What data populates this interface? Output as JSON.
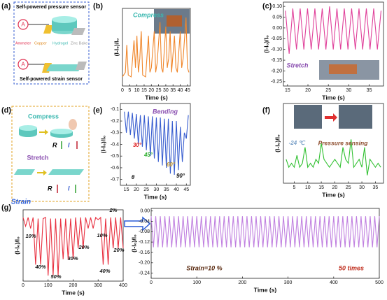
{
  "panel_labels": [
    "(a)",
    "(b)",
    "(c)",
    "(d)",
    "(e)",
    "(f)",
    "(g)"
  ],
  "diagram_a": {
    "top_title": "Self-powered pressure sensor",
    "bottom_title": "Self-powered strain sensor",
    "ammeter_symbol": "A",
    "labels": [
      "Ammeter",
      "Copper",
      "Hydrogel",
      "Zinc Bake"
    ]
  },
  "diagram_d": {
    "compress": "Compress",
    "stretch": "Stretch",
    "resistance": "R",
    "current": "I"
  },
  "chart_data": [
    {
      "type": "line",
      "xlabel": "Time (s)",
      "ylabel": "(I-I₀)/I₀",
      "x": [
        0,
        2,
        3,
        4,
        6,
        8,
        9,
        10,
        11,
        12,
        13,
        14,
        16,
        18,
        19,
        20,
        22,
        23,
        24,
        26,
        27,
        28,
        30,
        31,
        32,
        33,
        34,
        36,
        37,
        38,
        40,
        41,
        42,
        44,
        45,
        46
      ],
      "series": [
        {
          "color": "#f0862a",
          "values": [
            0.1,
            0.15,
            0.45,
            0.12,
            0.1,
            0.5,
            0.2,
            0.55,
            0.15,
            0.3,
            0.6,
            0.12,
            0.1,
            0.55,
            0.15,
            0.2,
            0.6,
            0.15,
            0.25,
            0.7,
            0.2,
            0.15,
            0.65,
            0.2,
            0.3,
            0.6,
            0.15,
            0.55,
            0.2,
            0.15,
            0.6,
            0.2,
            0.3,
            0.75,
            0.2,
            0.15
          ]
        }
      ],
      "xlim": [
        0,
        47
      ],
      "ylim": [
        0,
        0.85
      ],
      "xticks": [
        0,
        5,
        10,
        15,
        20,
        25,
        30,
        35,
        40,
        45
      ],
      "annotations": [
        {
          "text": "Compress",
          "color": "#3bb8b0"
        }
      ]
    },
    {
      "type": "line",
      "xlabel": "Time (s)",
      "ylabel": "(I-I₀)/I₀",
      "x": [
        14.5,
        15.4,
        16.3,
        17.2,
        18.1,
        19,
        19.9,
        20.8,
        21.7,
        22.6,
        23.5,
        24.4,
        25.3,
        26.2,
        27.1,
        28,
        28.9,
        29.8,
        30.7,
        31.6,
        32.5,
        33.4,
        34.3,
        35.2,
        36.1,
        37,
        37.9
      ],
      "series": [
        {
          "color": "#e0409a",
          "values": [
            0.08,
            -0.12,
            0.09,
            -0.1,
            0.09,
            -0.1,
            0.09,
            -0.1,
            0.09,
            -0.1,
            0.09,
            -0.1,
            0.1,
            -0.1,
            0.09,
            -0.1,
            0.09,
            -0.1,
            0.09,
            -0.1,
            0.09,
            -0.1,
            0.09,
            -0.1,
            0.09,
            -0.1,
            0.08
          ]
        }
      ],
      "xlim": [
        14,
        38.5
      ],
      "ylim": [
        -0.27,
        0.12
      ],
      "xticks": [
        15,
        20,
        25,
        30,
        35
      ],
      "yticks": [
        {
          "value": 0.1,
          "label": "0.10"
        },
        0.05,
        {
          "value": 0,
          "label": "0.00"
        },
        -0.05,
        {
          "value": -0.1,
          "label": "-0.10"
        },
        -0.15,
        {
          "value": -0.2,
          "label": "-0.20"
        },
        -0.25
      ],
      "annotations": [
        {
          "text": "Stretch",
          "color": "#8a4fb0"
        }
      ]
    },
    {
      "type": "line",
      "xlabel": "Time (s)",
      "ylabel": "(I-I₀)/I₀",
      "x": [
        14,
        15,
        16,
        17,
        18,
        19,
        20,
        21,
        22,
        23,
        24,
        25,
        26,
        27,
        28,
        29,
        30,
        31,
        32,
        33,
        34,
        35,
        36,
        37,
        38,
        39,
        40,
        41,
        42,
        43,
        44,
        45,
        46
      ],
      "series": [
        {
          "color": "#3a5fd0",
          "values": [
            -0.12,
            -0.3,
            -0.12,
            -0.32,
            -0.13,
            -0.35,
            -0.14,
            -0.4,
            -0.15,
            -0.42,
            -0.15,
            -0.45,
            -0.16,
            -0.5,
            -0.16,
            -0.52,
            -0.17,
            -0.55,
            -0.17,
            -0.58,
            -0.18,
            -0.6,
            -0.18,
            -0.65,
            -0.2,
            -0.66,
            -0.2,
            -0.62,
            -0.25,
            -0.55,
            -0.3,
            -0.35,
            -0.15
          ]
        }
      ],
      "xlim": [
        12,
        47
      ],
      "ylim": [
        -0.75,
        -0.05
      ],
      "xticks": [
        15,
        20,
        25,
        30,
        35,
        40,
        45
      ],
      "yticks": [
        -0.1,
        -0.2,
        -0.3,
        -0.4,
        -0.5,
        -0.6,
        -0.7
      ],
      "annotations": [
        {
          "text": "Bending",
          "color": "#8a4fb0"
        },
        {
          "text": "30°",
          "color": "#e02020"
        },
        {
          "text": "45°",
          "color": "#30b030"
        },
        {
          "text": "60°",
          "color": "#c89a30"
        },
        {
          "text": "90°",
          "color": "#111111"
        },
        {
          "text": "θ",
          "color": "#111111"
        }
      ]
    },
    {
      "type": "line",
      "xlabel": "Time (s)",
      "ylabel": "(I-I₀)/I₀",
      "x": [
        2,
        3,
        4,
        5,
        6,
        7,
        8,
        9,
        10,
        11,
        12,
        13,
        14,
        15,
        16,
        17,
        18,
        19,
        20,
        21,
        22,
        23,
        24,
        25,
        26,
        27,
        28,
        29,
        30,
        31,
        32,
        33,
        34,
        35,
        36,
        37
      ],
      "series": [
        {
          "color": "#30c030",
          "values": [
            0.3,
            0.2,
            0.25,
            0.2,
            0.35,
            0.2,
            0.25,
            0.45,
            0.2,
            0.25,
            0.2,
            0.3,
            0.25,
            0.5,
            0.3,
            0.25,
            0.2,
            0.25,
            0.3,
            0.25,
            0.2,
            0.45,
            0.3,
            0.25,
            0.55,
            0.2,
            0.25,
            0.3,
            0.2,
            0.45,
            0.1,
            0.3,
            0.25,
            0.2,
            0.25,
            0.2
          ]
        }
      ],
      "xlim": [
        1,
        38
      ],
      "ylim": [
        0,
        1
      ],
      "xticks": [
        5,
        10,
        15,
        20,
        25,
        30,
        35
      ],
      "annotations": [
        {
          "text": "-24 ℃",
          "color": "#7aa0c8"
        },
        {
          "text": "Pressure sensing",
          "color": "#8b4a2a"
        }
      ]
    },
    {
      "type": "line",
      "xlabel": "Time (s)",
      "ylabel": "(I-I₀)/I₀",
      "x": [
        0,
        10,
        20,
        30,
        40,
        50,
        60,
        70,
        80,
        90,
        100,
        110,
        120,
        130,
        140,
        150,
        160,
        170,
        180,
        190,
        200,
        210,
        220,
        230,
        240,
        250,
        260,
        270,
        280,
        290,
        300,
        310,
        320,
        330,
        340,
        350,
        360,
        370,
        380,
        390,
        400
      ],
      "series": [
        {
          "color": "#e83040",
          "values": [
            -0.02,
            -0.1,
            -0.02,
            -0.12,
            -0.02,
            -0.45,
            -0.03,
            -0.45,
            -0.03,
            -0.02,
            -0.55,
            -0.03,
            -0.55,
            -0.03,
            -0.55,
            -0.03,
            -0.4,
            -0.03,
            -0.4,
            -0.03,
            -0.4,
            -0.02,
            -0.3,
            -0.02,
            -0.3,
            -0.02,
            -0.12,
            -0.02,
            -0.12,
            -0.02,
            -0.04,
            -0.02,
            -0.45,
            -0.03,
            -0.45,
            -0.02,
            -0.3,
            -0.02,
            -0.3,
            -0.02,
            -0.3
          ]
        }
      ],
      "xlim": [
        0,
        400
      ],
      "ylim": [
        -0.6,
        0.05
      ],
      "xticks": [
        0,
        100,
        200,
        300,
        400
      ],
      "annotations": [
        {
          "text": "Strain",
          "color": "#2a5cd6"
        },
        {
          "text": "10%",
          "color": "#111111"
        },
        {
          "text": "40%",
          "color": "#111111"
        },
        {
          "text": "50%",
          "color": "#111111"
        },
        {
          "text": "30%",
          "color": "#111111"
        },
        {
          "text": "20%",
          "color": "#111111"
        },
        {
          "text": "10%",
          "color": "#111111"
        },
        {
          "text": "2%",
          "color": "#111111"
        },
        {
          "text": "40%",
          "color": "#111111"
        },
        {
          "text": "20%",
          "color": "#111111"
        }
      ]
    },
    {
      "type": "line",
      "xlabel": "Time (s)",
      "ylabel": "(I-I₀)/I₀",
      "x": [
        0,
        5,
        10,
        15,
        20,
        25,
        30,
        35,
        40,
        45,
        50,
        55,
        60,
        65,
        70,
        75,
        80,
        85,
        90,
        95,
        100,
        105,
        110,
        115,
        120,
        125,
        130,
        135,
        140,
        145,
        150,
        155,
        160,
        165,
        170,
        175,
        180,
        185,
        190,
        195,
        200,
        205,
        210,
        215,
        220,
        225,
        230,
        235,
        240,
        245,
        250,
        255,
        260,
        265,
        270,
        275,
        280,
        285,
        290,
        295,
        300,
        305,
        310,
        315,
        320,
        325,
        330,
        335,
        340,
        345,
        350,
        355,
        360,
        365,
        370,
        375,
        380,
        385,
        390,
        395,
        400,
        405,
        410,
        415,
        420,
        425,
        430,
        435,
        440,
        445,
        450,
        455,
        460,
        465,
        470,
        475,
        480,
        485,
        490,
        495,
        500
      ],
      "series": [
        {
          "color": "#c080e0",
          "values": [
            -0.02,
            -0.14,
            -0.02,
            -0.14,
            -0.02,
            -0.14,
            -0.02,
            -0.14,
            -0.02,
            -0.14,
            -0.02,
            -0.14,
            -0.02,
            -0.14,
            -0.02,
            -0.14,
            -0.02,
            -0.14,
            -0.02,
            -0.14,
            -0.02,
            -0.14,
            -0.02,
            -0.14,
            -0.02,
            -0.14,
            -0.02,
            -0.14,
            -0.02,
            -0.14,
            -0.02,
            -0.14,
            -0.02,
            -0.14,
            -0.02,
            -0.14,
            -0.02,
            -0.14,
            -0.02,
            -0.14,
            -0.02,
            -0.14,
            -0.02,
            -0.14,
            -0.02,
            -0.14,
            -0.02,
            -0.14,
            -0.02,
            -0.14,
            -0.02,
            -0.14,
            -0.02,
            -0.14,
            -0.02,
            -0.14,
            -0.02,
            -0.14,
            -0.02,
            -0.14,
            -0.02,
            -0.14,
            -0.02,
            -0.14,
            -0.02,
            -0.14,
            -0.02,
            -0.14,
            -0.02,
            -0.14,
            -0.02,
            -0.14,
            -0.02,
            -0.14,
            -0.02,
            -0.14,
            -0.02,
            -0.14,
            -0.02,
            -0.14,
            -0.02,
            -0.14,
            -0.02,
            -0.14,
            -0.02,
            -0.14,
            -0.02,
            -0.14,
            -0.02,
            -0.14,
            -0.02,
            -0.14,
            -0.02,
            -0.14,
            -0.02,
            -0.14,
            -0.02,
            -0.14,
            -0.02,
            -0.14,
            -0.02
          ]
        }
      ],
      "xlim": [
        0,
        500
      ],
      "ylim": [
        -0.26,
        0.01
      ],
      "xticks": [
        0,
        100,
        200,
        300,
        400,
        500
      ],
      "yticks": [
        {
          "value": 0,
          "label": "0.00"
        },
        -0.04,
        -0.08,
        -0.12,
        -0.16,
        {
          "value": -0.2,
          "label": "-0.20"
        },
        -0.24
      ],
      "annotations": [
        {
          "text": "Strain=10 %",
          "color": "#5a2a10"
        },
        {
          "text": "50 times",
          "color": "#c03020"
        }
      ]
    }
  ]
}
